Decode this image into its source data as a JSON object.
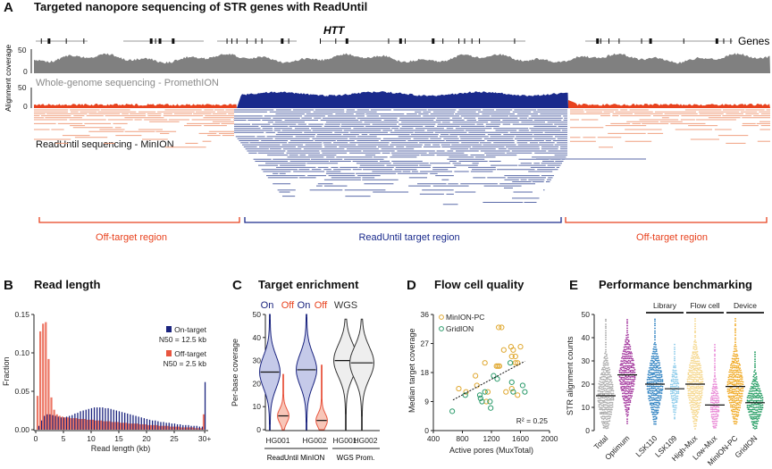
{
  "panel_a": {
    "letter": "A",
    "title": "Targeted nanopore sequencing of STR genes with ReadUntil",
    "gene_name": "HTT",
    "genes_label": "Genes",
    "y_label": "Alignment coverage",
    "wgs_ticks": [
      "50",
      "0"
    ],
    "ru_ticks": [
      "50",
      "0"
    ],
    "wgs_label": "Whole-genome sequencing - PromethION",
    "ru_label": "ReadUntil sequencing - MinION",
    "regions": [
      "Off-target region",
      "ReadUntil target region",
      "Off-target region"
    ],
    "colors": {
      "wgs": "#808080",
      "on_target": "#1a2a8c",
      "off_target": "#e8421e",
      "reads_on": "#5a6aa8",
      "reads_off": "#f0a080"
    }
  },
  "chart_data": [
    {
      "panel": "B",
      "type": "bar",
      "title": "Read length",
      "xlabel": "Read length (kb)",
      "ylabel": "Fraction",
      "ylim": [
        0,
        0.15
      ],
      "yticks": [
        "0.00",
        "0.05",
        "0.10",
        "0.15"
      ],
      "xticks": [
        "0",
        "5",
        "10",
        "15",
        "20",
        "25",
        "30+"
      ],
      "bin_kb": [
        0.5,
        1,
        1.5,
        2,
        2.5,
        3,
        3.5,
        4,
        4.5,
        5,
        5.5,
        6,
        6.5,
        7,
        7.5,
        8,
        8.5,
        9,
        9.5,
        10,
        10.5,
        11,
        11.5,
        12,
        12.5,
        13,
        13.5,
        14,
        14.5,
        15,
        15.5,
        16,
        16.5,
        17,
        17.5,
        18,
        18.5,
        19,
        19.5,
        20,
        20.5,
        21,
        21.5,
        22,
        22.5,
        23,
        23.5,
        24,
        24.5,
        25,
        25.5,
        26,
        26.5,
        27,
        27.5,
        28,
        28.5,
        29,
        29.5,
        30,
        "30+"
      ],
      "series": [
        {
          "name": "On-target",
          "n50": "N50 = 12.5 kb",
          "color": "#1a237e",
          "values": [
            0.005,
            0.012,
            0.018,
            0.02,
            0.02,
            0.019,
            0.018,
            0.017,
            0.016,
            0.016,
            0.017,
            0.018,
            0.019,
            0.021,
            0.022,
            0.024,
            0.025,
            0.026,
            0.027,
            0.028,
            0.029,
            0.029,
            0.029,
            0.029,
            0.028,
            0.028,
            0.027,
            0.026,
            0.025,
            0.024,
            0.023,
            0.022,
            0.021,
            0.02,
            0.019,
            0.018,
            0.017,
            0.016,
            0.015,
            0.014,
            0.013,
            0.012,
            0.012,
            0.011,
            0.01,
            0.01,
            0.009,
            0.009,
            0.008,
            0.008,
            0.007,
            0.007,
            0.006,
            0.006,
            0.006,
            0.005,
            0.005,
            0.005,
            0.004,
            0.004,
            0.062
          ]
        },
        {
          "name": "Off-target",
          "n50": "N50 = 2.5 kb",
          "color": "#e8553f",
          "values": [
            0.044,
            0.128,
            0.138,
            0.14,
            0.092,
            0.042,
            0.026,
            0.02,
            0.018,
            0.017,
            0.016,
            0.016,
            0.015,
            0.015,
            0.015,
            0.014,
            0.014,
            0.014,
            0.013,
            0.013,
            0.013,
            0.012,
            0.012,
            0.012,
            0.011,
            0.011,
            0.011,
            0.01,
            0.01,
            0.01,
            0.009,
            0.009,
            0.009,
            0.008,
            0.008,
            0.008,
            0.008,
            0.007,
            0.007,
            0.007,
            0.006,
            0.006,
            0.006,
            0.006,
            0.005,
            0.005,
            0.005,
            0.005,
            0.004,
            0.004,
            0.004,
            0.004,
            0.003,
            0.003,
            0.003,
            0.003,
            0.003,
            0.002,
            0.002,
            0.002,
            0.02
          ]
        }
      ],
      "legend": "top-right"
    },
    {
      "panel": "C",
      "type": "violin",
      "title": "Target enrichment",
      "ylabel": "Per-base coverage",
      "ylim": [
        0,
        50
      ],
      "yticks": [
        "0",
        "10",
        "20",
        "30",
        "40",
        "50"
      ],
      "header_labels": [
        {
          "text": "On",
          "color": "#1a237e"
        },
        {
          "text": "Off",
          "color": "#e8421e"
        },
        {
          "text": "On",
          "color": "#1a237e"
        },
        {
          "text": "Off",
          "color": "#e8421e"
        },
        {
          "text": "WGS",
          "color": "#333333"
        }
      ],
      "violins": [
        {
          "sample": "HG001",
          "kind": "On",
          "median": 25,
          "min": 0,
          "max": 50
        },
        {
          "sample": "HG001",
          "kind": "Off",
          "median": 6,
          "min": 0,
          "max": 24
        },
        {
          "sample": "HG002",
          "kind": "On",
          "median": 26,
          "min": 0,
          "max": 50
        },
        {
          "sample": "HG002",
          "kind": "Off",
          "median": 4,
          "min": 0,
          "max": 28
        },
        {
          "sample": "HG001",
          "kind": "WGS",
          "median": 30,
          "min": 0,
          "max": 48
        },
        {
          "sample": "HG002",
          "kind": "WGS",
          "median": 29,
          "min": 0,
          "max": 48
        }
      ],
      "sample_labels": [
        "HG001",
        "HG002",
        "HG001",
        "HG002"
      ],
      "group_labels": [
        "ReadUntil MinION",
        "WGS Prom."
      ]
    },
    {
      "panel": "D",
      "type": "scatter",
      "title": "Flow cell quality",
      "xlabel": "Active pores (MuxTotal)",
      "ylabel": "Median target coverage",
      "xlim": [
        400,
        2000
      ],
      "ylim": [
        0,
        36
      ],
      "xticks": [
        "400",
        "800",
        "1200",
        "1600",
        "2000"
      ],
      "yticks": [
        "0",
        "9",
        "18",
        "27",
        "36"
      ],
      "annotation": "R² = 0.25",
      "fit": [
        [
          670,
          9.5
        ],
        [
          1660,
          21.5
        ]
      ],
      "legend": "top-left",
      "series": [
        {
          "name": "MinION-PC",
          "color": "#e0a830",
          "points": [
            [
              1300,
              32
            ],
            [
              1340,
              32
            ],
            [
              1370,
              25
            ],
            [
              1470,
              26
            ],
            [
              1500,
              25
            ],
            [
              1600,
              26
            ],
            [
              1480,
              23
            ],
            [
              1530,
              23
            ],
            [
              1110,
              21
            ],
            [
              1530,
              21
            ],
            [
              1560,
              21
            ],
            [
              1270,
              20
            ],
            [
              1290,
              20
            ],
            [
              1310,
              20
            ],
            [
              980,
              17
            ],
            [
              1000,
              14
            ],
            [
              750,
              13
            ],
            [
              850,
              12
            ],
            [
              1150,
              12
            ],
            [
              1400,
              12
            ],
            [
              1480,
              13
            ],
            [
              1130,
              9
            ],
            [
              1560,
              11
            ]
          ]
        },
        {
          "name": "GridION",
          "color": "#2a9a6a",
          "points": [
            [
              660,
              6
            ],
            [
              840,
              11
            ],
            [
              1040,
              11
            ],
            [
              1050,
              10
            ],
            [
              1070,
              9
            ],
            [
              1110,
              12
            ],
            [
              1180,
              9
            ],
            [
              1190,
              7
            ],
            [
              1230,
              17
            ],
            [
              1280,
              16
            ],
            [
              1460,
              21
            ],
            [
              1480,
              15
            ],
            [
              1500,
              12
            ],
            [
              1630,
              14
            ],
            [
              1660,
              12
            ]
          ]
        }
      ]
    },
    {
      "panel": "E",
      "type": "beeswarm",
      "title": "Performance benchmarking",
      "ylabel": "STR alignment counts",
      "ylim": [
        0,
        50
      ],
      "yticks": [
        "0",
        "10",
        "20",
        "30",
        "40",
        "50"
      ],
      "groups": [
        {
          "label": "Library",
          "from": 2,
          "to": 3
        },
        {
          "label": "Flow cell",
          "from": 4,
          "to": 5
        },
        {
          "label": "Device",
          "from": 6,
          "to": 7
        }
      ],
      "categories": [
        {
          "label": "Total",
          "median": 15,
          "min": 1,
          "max": 48,
          "color": "#a8a8a8"
        },
        {
          "label": "Optimum",
          "median": 24,
          "min": 3,
          "max": 48,
          "color": "#a0309a"
        },
        {
          "label": "LSK110",
          "median": 20,
          "min": 3,
          "max": 48,
          "color": "#2a7fc0"
        },
        {
          "label": "LSK109",
          "median": 18,
          "min": 5,
          "max": 37,
          "color": "#8ccbea"
        },
        {
          "label": "High-Mux",
          "median": 20,
          "min": 1,
          "max": 48,
          "color": "#f5d68a"
        },
        {
          "label": "Low-Mux",
          "median": 11,
          "min": 1,
          "max": 37,
          "color": "#e884d4"
        },
        {
          "label": "MinION-PC",
          "median": 19,
          "min": 3,
          "max": 48,
          "color": "#f0a820"
        },
        {
          "label": "GridION",
          "median": 12,
          "min": 1,
          "max": 34,
          "color": "#1e9a5e"
        }
      ]
    }
  ],
  "panel_letters": {
    "b": "B",
    "c": "C",
    "d": "D",
    "e": "E"
  }
}
